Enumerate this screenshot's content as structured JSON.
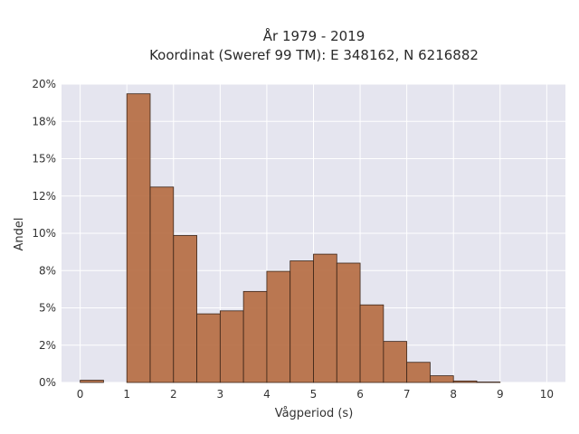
{
  "chart_data": {
    "type": "bar",
    "title": "År 1979 - 2019",
    "subtitle": "Koordinat (Sweref 99 TM): E 348162, N 6216882",
    "xlabel": "Vågperiod (s)",
    "ylabel": "Andel",
    "xlim": [
      -0.4,
      10.4
    ],
    "ylim": [
      0,
      0.2
    ],
    "x_ticks": [
      0,
      1,
      2,
      3,
      4,
      5,
      6,
      7,
      8,
      9,
      10
    ],
    "x_tick_labels": [
      "0",
      "1",
      "2",
      "3",
      "4",
      "5",
      "6",
      "7",
      "8",
      "9",
      "10"
    ],
    "y_ticks": [
      0,
      0.025,
      0.05,
      0.075,
      0.1,
      0.125,
      0.15,
      0.175,
      0.2
    ],
    "y_tick_labels": [
      "0%",
      "2%",
      "5%",
      "8%",
      "10%",
      "12%",
      "15%",
      "18%",
      "20%"
    ],
    "grid": true,
    "bins": [
      {
        "x0": 0.0,
        "x1": 0.5,
        "value": 0.0015
      },
      {
        "x0": 1.0,
        "x1": 1.5,
        "value": 0.1935
      },
      {
        "x0": 1.5,
        "x1": 2.0,
        "value": 0.131
      },
      {
        "x0": 2.0,
        "x1": 2.5,
        "value": 0.0985
      },
      {
        "x0": 2.5,
        "x1": 3.0,
        "value": 0.046
      },
      {
        "x0": 3.0,
        "x1": 3.5,
        "value": 0.048
      },
      {
        "x0": 3.5,
        "x1": 4.0,
        "value": 0.061
      },
      {
        "x0": 4.0,
        "x1": 4.5,
        "value": 0.0745
      },
      {
        "x0": 4.5,
        "x1": 5.0,
        "value": 0.0815
      },
      {
        "x0": 5.0,
        "x1": 5.5,
        "value": 0.086
      },
      {
        "x0": 5.5,
        "x1": 6.0,
        "value": 0.08
      },
      {
        "x0": 6.0,
        "x1": 6.5,
        "value": 0.052
      },
      {
        "x0": 6.5,
        "x1": 7.0,
        "value": 0.0275
      },
      {
        "x0": 7.0,
        "x1": 7.5,
        "value": 0.0135
      },
      {
        "x0": 7.5,
        "x1": 8.0,
        "value": 0.0045
      },
      {
        "x0": 8.0,
        "x1": 8.5,
        "value": 0.001
      },
      {
        "x0": 8.5,
        "x1": 9.0,
        "value": 0.0003
      }
    ],
    "colors": {
      "bar": "#b56a3f",
      "bar_edge": "#3a2418",
      "plot_background": "#e5e5ef",
      "grid": "#ffffff"
    }
  }
}
